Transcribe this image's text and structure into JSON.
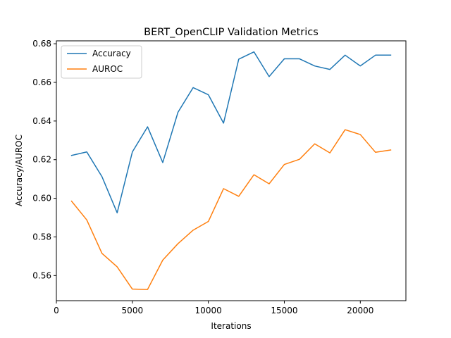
{
  "chart_data": {
    "type": "line",
    "title": "BERT_OpenCLIP Validation Metrics",
    "xlabel": "Iterations",
    "ylabel": "Accuracy/AUROC",
    "xlim": [
      0,
      23000
    ],
    "ylim": [
      0.547,
      0.6815
    ],
    "x_ticks": [
      0,
      5000,
      10000,
      15000,
      20000
    ],
    "y_ticks": [
      0.56,
      0.58,
      0.6,
      0.62,
      0.64,
      0.66,
      0.68
    ],
    "grid": false,
    "legend_position": "top-left",
    "x": [
      1000,
      2000,
      3000,
      4000,
      5000,
      6000,
      7000,
      8000,
      9000,
      10000,
      11000,
      12000,
      13000,
      14000,
      15000,
      16000,
      17000,
      18000,
      19000,
      20000,
      21000,
      22000
    ],
    "series": [
      {
        "name": "Accuracy",
        "color": "#1f77b4",
        "values": [
          0.6222,
          0.624,
          0.6112,
          0.5925,
          0.624,
          0.637,
          0.6185,
          0.6445,
          0.6573,
          0.6536,
          0.6389,
          0.672,
          0.6758,
          0.663,
          0.6722,
          0.6722,
          0.6685,
          0.6667,
          0.6741,
          0.6685,
          0.6741,
          0.6741
        ]
      },
      {
        "name": "AUROC",
        "color": "#ff7f0e",
        "values": [
          0.5985,
          0.5888,
          0.5715,
          0.5645,
          0.553,
          0.5528,
          0.568,
          0.5765,
          0.5835,
          0.588,
          0.605,
          0.601,
          0.6122,
          0.6075,
          0.6175,
          0.6202,
          0.6282,
          0.6235,
          0.6355,
          0.633,
          0.6238,
          0.625
        ]
      }
    ]
  }
}
